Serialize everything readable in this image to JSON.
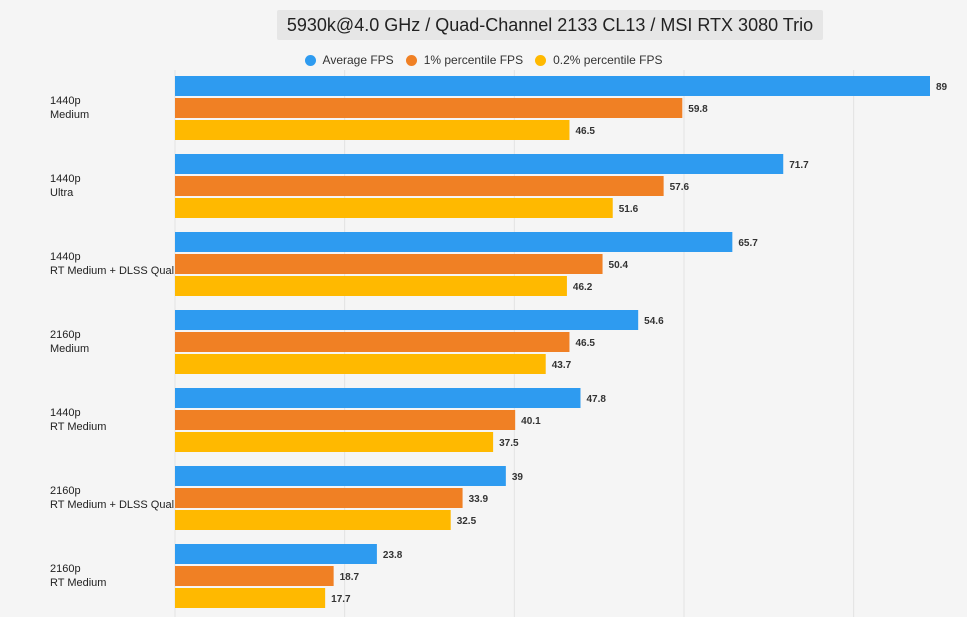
{
  "chart_data": {
    "type": "bar",
    "orientation": "horizontal",
    "title": "5930k@4.0 GHz / Quad-Channel 2133 CL13 / MSI RTX 3080 Trio",
    "categories": [
      [
        "1440p",
        "Medium"
      ],
      [
        "1440p",
        "Ultra"
      ],
      [
        "1440p",
        "RT Medium + DLSS Qual."
      ],
      [
        "2160p",
        "Medium"
      ],
      [
        "1440p",
        "RT Medium"
      ],
      [
        "2160p",
        "RT Medium + DLSS Qual."
      ],
      [
        "2160p",
        "RT Medium"
      ]
    ],
    "series": [
      {
        "name": "Average FPS",
        "color": "#2e9bf0",
        "values": [
          89,
          71.7,
          65.7,
          54.6,
          47.8,
          39,
          23.8
        ]
      },
      {
        "name": "1% percentile FPS",
        "color": "#f08024",
        "values": [
          59.8,
          57.6,
          50.4,
          46.5,
          40.1,
          33.9,
          18.7
        ]
      },
      {
        "name": "0.2% percentile FPS",
        "color": "#ffb900",
        "values": [
          46.5,
          51.6,
          46.2,
          43.7,
          37.5,
          32.5,
          17.7
        ]
      }
    ],
    "xlim": [
      0,
      90
    ],
    "grid": true,
    "legend_position": "top"
  }
}
